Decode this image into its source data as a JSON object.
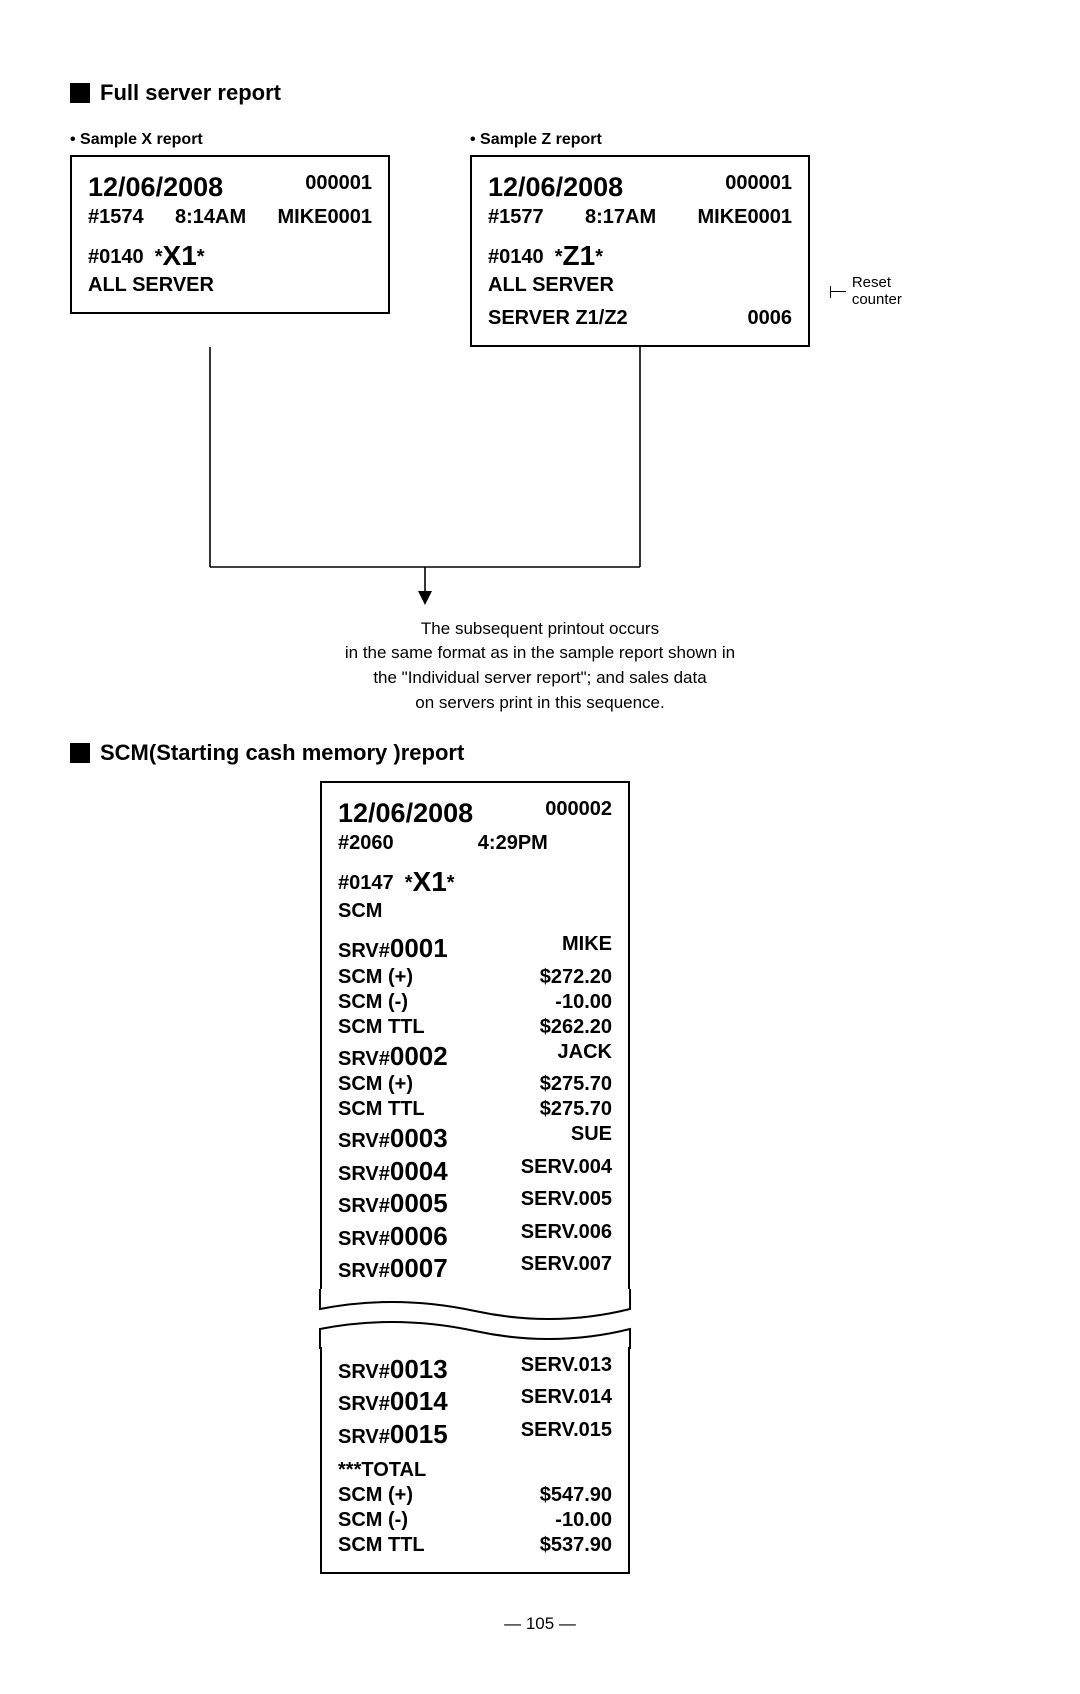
{
  "page_number": "— 105 —",
  "section1": {
    "title": "Full server report",
    "xlabel": "• Sample X report",
    "zlabel": "• Sample Z report"
  },
  "receipt_x": {
    "date": "12/06/2008",
    "seq": "000001",
    "trans": "#1574",
    "time": "8:14AM",
    "user": "MIKE0001",
    "code": "#0140",
    "mode": "*X1*",
    "modebig": "X1",
    "desc": "ALL SERVER"
  },
  "receipt_z": {
    "date": "12/06/2008",
    "seq": "000001",
    "trans": "#1577",
    "time": "8:17AM",
    "user": "MIKE0001",
    "code": "#0140",
    "mode": "*Z1*",
    "modebig": "Z1",
    "desc": "ALL SERVER",
    "server_line": "SERVER Z1/Z2",
    "server_val": "0006",
    "note": "Reset counter"
  },
  "caption1": "The subsequent printout occurs",
  "caption2": "in the same format as in the sample report shown in",
  "caption3": "the \"Individual server report\";  and sales data",
  "caption4": "on servers print in this sequence.",
  "section2": {
    "title": "SCM(Starting cash memory )report"
  },
  "receipt_scm": {
    "date": "12/06/2008",
    "seq": "000002",
    "trans": "#2060",
    "time": "4:29PM",
    "code": "#0147",
    "modebig": "X1",
    "desc": "SCM",
    "rows1": [
      {
        "l": "SRV#",
        "lb": "0001",
        "r": "MIKE"
      },
      {
        "l": "SCM (+)",
        "r": "$272.20"
      },
      {
        "l": "SCM (-)",
        "r": "-10.00"
      },
      {
        "l": "SCM TTL",
        "r": "$262.20"
      },
      {
        "l": "SRV#",
        "lb": "0002",
        "r": "JACK"
      },
      {
        "l": "SCM (+)",
        "r": "$275.70"
      },
      {
        "l": "SCM TTL",
        "r": "$275.70"
      },
      {
        "l": "SRV#",
        "lb": "0003",
        "r": "SUE"
      },
      {
        "l": "SRV#",
        "lb": "0004",
        "r": "SERV.004"
      },
      {
        "l": "SRV#",
        "lb": "0005",
        "r": "SERV.005"
      },
      {
        "l": "SRV#",
        "lb": "0006",
        "r": "SERV.006"
      },
      {
        "l": "SRV#",
        "lb": "0007",
        "r": "SERV.007"
      }
    ],
    "rows2": [
      {
        "l": "SRV#",
        "lb": "0013",
        "r": "SERV.013"
      },
      {
        "l": "SRV#",
        "lb": "0014",
        "r": "SERV.014"
      },
      {
        "l": "SRV#",
        "lb": "0015",
        "r": "SERV.015"
      }
    ],
    "total_label": "***TOTAL",
    "total_rows": [
      {
        "l": "SCM (+)",
        "r": "$547.90"
      },
      {
        "l": "SCM (-)",
        "r": "-10.00"
      },
      {
        "l": "SCM TTL",
        "r": "$537.90"
      }
    ]
  }
}
